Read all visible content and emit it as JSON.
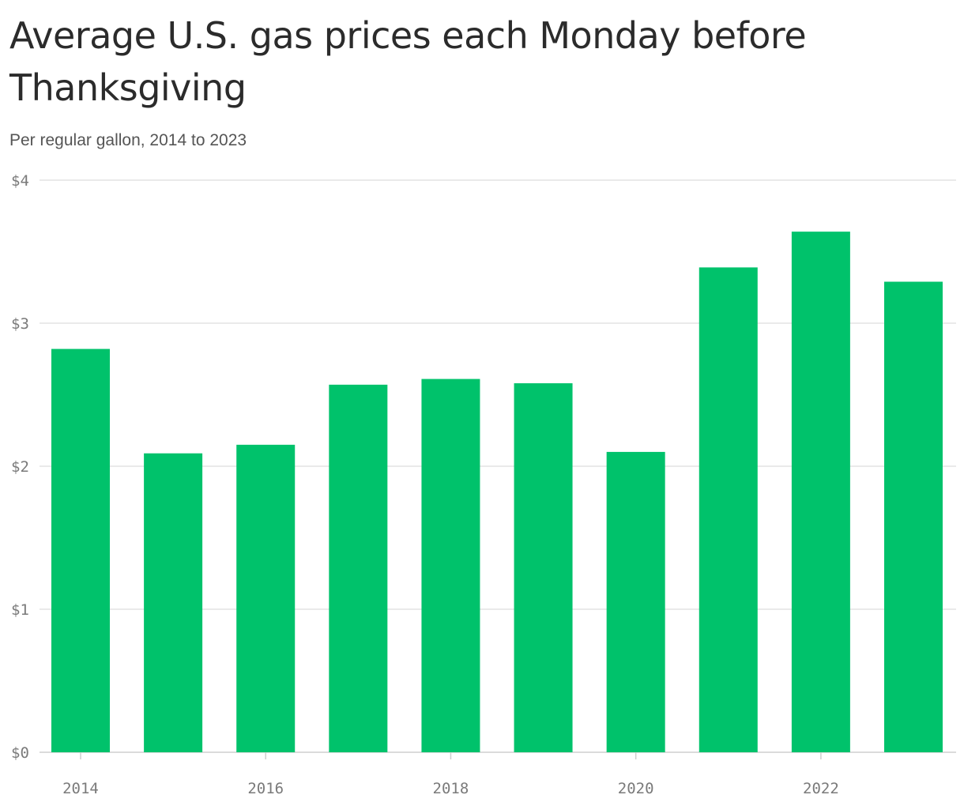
{
  "title": "Average U.S. gas prices each Monday before Thanksgiving",
  "subtitle": "Per regular gallon, 2014 to 2023",
  "colors": {
    "bar": "#00c26b",
    "grid": "#e3e3e3",
    "axis": "#cfcfcf",
    "tick_text": "#7a7a7a"
  },
  "chart_data": {
    "type": "bar",
    "title": "Average U.S. gas prices each Monday before Thanksgiving",
    "subtitle": "Per regular gallon, 2014 to 2023",
    "categories": [
      "2014",
      "2015",
      "2016",
      "2017",
      "2018",
      "2019",
      "2020",
      "2021",
      "2022",
      "2023"
    ],
    "values": [
      2.82,
      2.09,
      2.15,
      2.57,
      2.61,
      2.58,
      2.1,
      3.39,
      3.64,
      3.29
    ],
    "ylim": [
      0,
      4
    ],
    "yticks": [
      0,
      1,
      2,
      3,
      4
    ],
    "ytick_labels": [
      "$0",
      "$1",
      "$2",
      "$3",
      "$4"
    ],
    "xtick_labels": [
      "2014",
      "2016",
      "2018",
      "2020",
      "2022"
    ],
    "grid": true,
    "legend": false
  }
}
